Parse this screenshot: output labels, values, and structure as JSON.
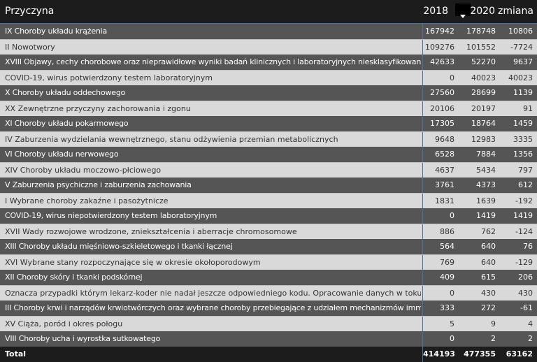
{
  "header": {
    "name": "Przyczyna",
    "y2018": "2018",
    "y2020": "2020",
    "change": "zmiana"
  },
  "rows": [
    {
      "name": "IX Choroby układu krążenia",
      "v2018": "167942",
      "v2020": "178748",
      "change": "10806"
    },
    {
      "name": "II Nowotwory",
      "v2018": "109276",
      "v2020": "101552",
      "change": "-7724"
    },
    {
      "name": "XVIII Objawy, cechy chorobowe oraz nieprawidłowe wyniki badań klinicznych i laboratoryjnych niesklasyfikowane gdzie indziej",
      "v2018": "42633",
      "v2020": "52270",
      "change": "9637"
    },
    {
      "name": "COVID-19, wirus potwierdzony testem laboratoryjnym",
      "v2018": "0",
      "v2020": "40023",
      "change": "40023"
    },
    {
      "name": "X Choroby układu oddechowego",
      "v2018": "27560",
      "v2020": "28699",
      "change": "1139"
    },
    {
      "name": "XX Zewnętrzne przyczyny zachorowania i zgonu",
      "v2018": "20106",
      "v2020": "20197",
      "change": "91"
    },
    {
      "name": "XI Choroby układu pokarmowego",
      "v2018": "17305",
      "v2020": "18764",
      "change": "1459"
    },
    {
      "name": "IV Zaburzenia wydzielania wewnętrznego, stanu odżywienia przemian metabolicznych",
      "v2018": "9648",
      "v2020": "12983",
      "change": "3335"
    },
    {
      "name": "VI Choroby układu nerwowego",
      "v2018": "6528",
      "v2020": "7884",
      "change": "1356"
    },
    {
      "name": "XIV Choroby układu moczowo-płciowego",
      "v2018": "4637",
      "v2020": "5434",
      "change": "797"
    },
    {
      "name": "V Zaburzenia psychiczne i zaburzenia zachowania",
      "v2018": "3761",
      "v2020": "4373",
      "change": "612"
    },
    {
      "name": "I Wybrane choroby zakaźne i pasożytnicze",
      "v2018": "1831",
      "v2020": "1639",
      "change": "-192"
    },
    {
      "name": "COVID-19, wirus niepotwierdzony testem laboratoryjnym",
      "v2018": "0",
      "v2020": "1419",
      "change": "1419"
    },
    {
      "name": "XVII Wady rozwojowe wrodzone, zniekształcenia i aberracje chromosomowe",
      "v2018": "886",
      "v2020": "762",
      "change": "-124"
    },
    {
      "name": "XIII Choroby układu mięśniowo-szkieletowego i tkanki łącznej",
      "v2018": "564",
      "v2020": "640",
      "change": "76"
    },
    {
      "name": "XVI Wybrane stany rozpoczynające się w okresie okołoporodowym",
      "v2018": "769",
      "v2020": "640",
      "change": "-129"
    },
    {
      "name": "XII Choroby skóry i tkanki podskórnej",
      "v2018": "409",
      "v2020": "615",
      "change": "206"
    },
    {
      "name": "Oznacza przypadki którym lekarz-koder nie nadał jeszcze odpowiedniego kodu. Opracowanie danych w toku.",
      "v2018": "0",
      "v2020": "430",
      "change": "430"
    },
    {
      "name": "III Choroby krwi i narządów krwiotwórczych oraz wybrane choroby przebiegające z udziałem mechanizmów immunologicznych",
      "v2018": "333",
      "v2020": "272",
      "change": "-61"
    },
    {
      "name": "XV Ciąża, poród i okres połogu",
      "v2018": "5",
      "v2020": "9",
      "change": "4"
    },
    {
      "name": "VIII Choroby ucha i wyrostka sutkowatego",
      "v2018": "0",
      "v2020": "2",
      "change": "2"
    }
  ],
  "total": {
    "name": "Total",
    "v2018": "414193",
    "v2020": "477355",
    "change": "63162"
  },
  "colors": {
    "dark_row": "#555555",
    "light_row": "#d9d9d9",
    "header": "#1c1c1c",
    "accent": "#4a6fa5"
  }
}
